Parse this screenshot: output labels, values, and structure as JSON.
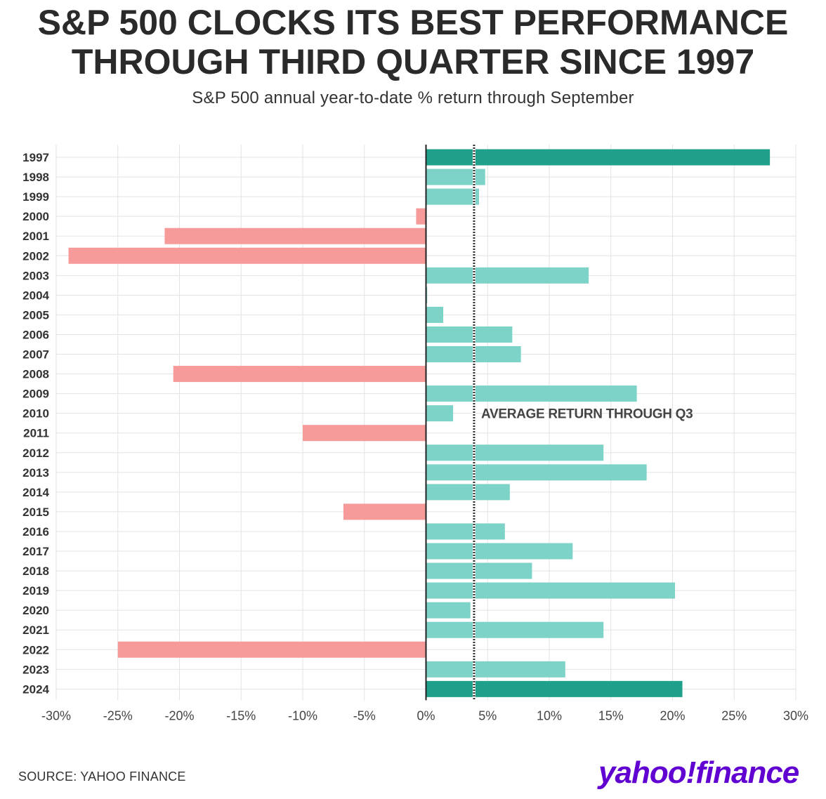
{
  "header": {
    "title": "S&P 500 CLOCKS ITS BEST PERFORMANCE\nTHROUGH THIRD QUARTER SINCE 1997",
    "subtitle": "S&P 500 annual year-to-date % return through September"
  },
  "footer": {
    "source": "SOURCE: YAHOO FINANCE",
    "brand_yahoo": "yahoo",
    "brand_mark": "!",
    "brand_finance": "finance"
  },
  "colors": {
    "positive": "#7dd3c8",
    "highlight": "#1ea08a",
    "negative": "#f79a9a",
    "grid": "#e3e3e3",
    "zero_line": "#222222",
    "average_line": "#333333",
    "brand": "#6001d2"
  },
  "chart_data": {
    "type": "bar",
    "orientation": "horizontal",
    "categories": [
      "1997",
      "1998",
      "1999",
      "2000",
      "2001",
      "2002",
      "2003",
      "2004",
      "2005",
      "2006",
      "2007",
      "2008",
      "2009",
      "2010",
      "2011",
      "2012",
      "2013",
      "2014",
      "2015",
      "2016",
      "2017",
      "2018",
      "2019",
      "2020",
      "2021",
      "2022",
      "2023",
      "2024"
    ],
    "values": [
      27.9,
      4.8,
      4.3,
      -0.8,
      -21.2,
      -29.0,
      13.2,
      0.1,
      1.4,
      7.0,
      7.7,
      -20.5,
      17.1,
      2.2,
      -10.0,
      14.4,
      17.9,
      6.8,
      -6.7,
      6.4,
      11.9,
      8.6,
      20.2,
      3.6,
      14.4,
      -25.0,
      11.3,
      20.8
    ],
    "highlighted": [
      "1997",
      "2024"
    ],
    "xlim": [
      -30,
      30
    ],
    "xticks": [
      "-30%",
      "-25%",
      "-20%",
      "-15%",
      "-10%",
      "-5%",
      "0%",
      "5%",
      "10%",
      "15%",
      "20%",
      "25%",
      "30%"
    ],
    "xtick_values": [
      -30,
      -25,
      -20,
      -15,
      -10,
      -5,
      0,
      5,
      10,
      15,
      20,
      25,
      30
    ],
    "grid": true,
    "average_return": 3.9,
    "annotation": "AVERAGE RETURN THROUGH Q3"
  }
}
